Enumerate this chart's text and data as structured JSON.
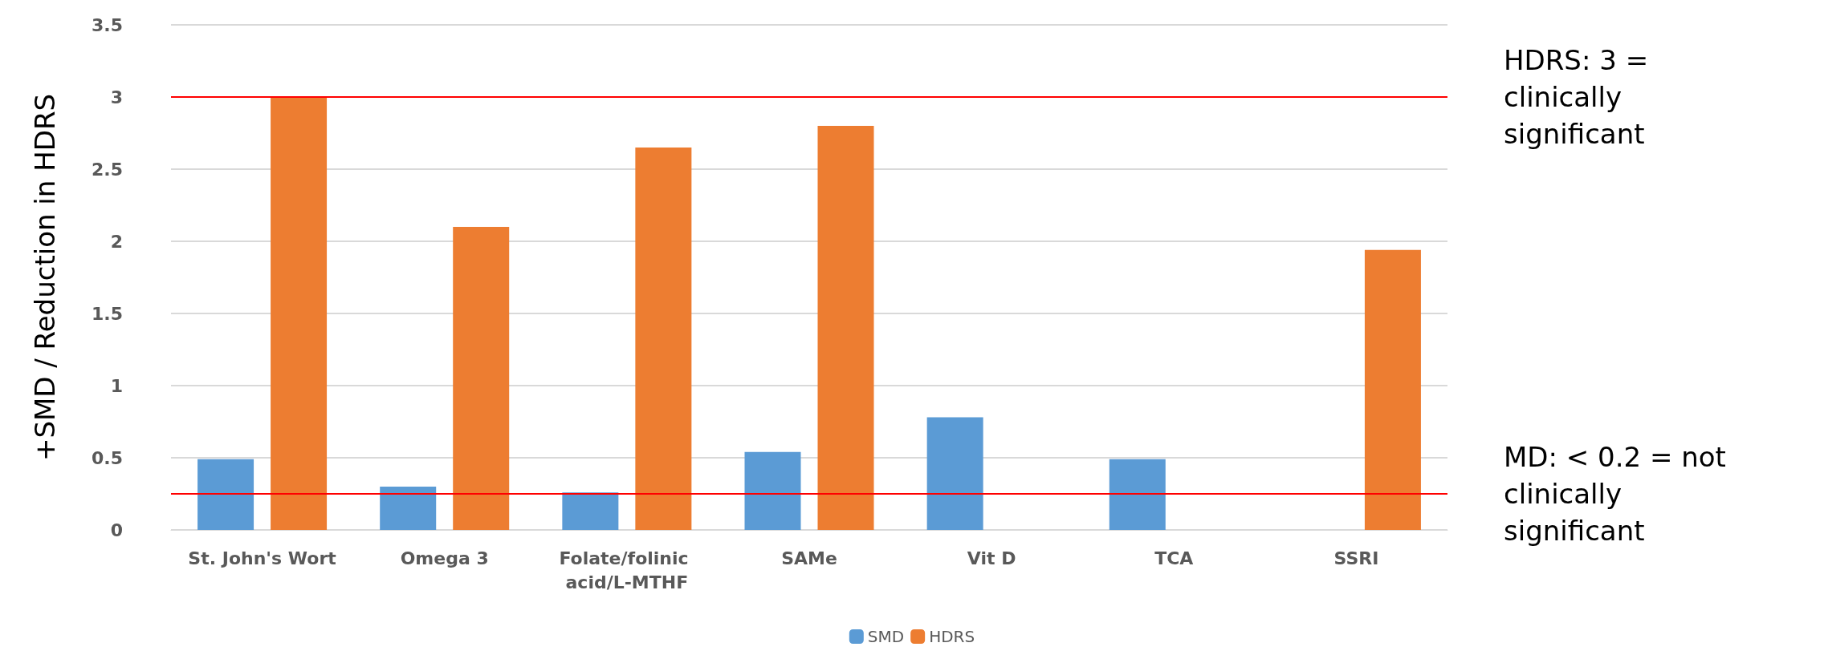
{
  "chart_data": {
    "type": "bar",
    "ylabel": "+SMD / Reduction in HDRS",
    "categories": [
      "St. John's Wort",
      "Omega 3",
      "Folate/folinic acid/L-MTHF",
      "SAMe",
      "Vit D",
      "TCA",
      "SSRI"
    ],
    "series": [
      {
        "name": "SMD",
        "color": "#5b9bd5",
        "values": [
          0.49,
          0.3,
          0.26,
          0.54,
          0.78,
          0.49,
          null
        ]
      },
      {
        "name": "HDRS",
        "color": "#ed7d31",
        "values": [
          3.0,
          2.1,
          2.65,
          2.8,
          null,
          null,
          1.94
        ]
      }
    ],
    "ylim": [
      0,
      3.5
    ],
    "yticks": [
      0,
      0.5,
      1,
      1.5,
      2,
      2.5,
      3,
      3.5
    ],
    "grid": "y",
    "legend": "bottom",
    "ref_lines": [
      {
        "axis": "y",
        "value": 3,
        "label": "HDRS: 3 = clinically significant",
        "color": "#ff0000"
      },
      {
        "axis": "y",
        "value": 0.25,
        "label": "MD: < 0.2 = not clinically significant",
        "color": "#ff0000"
      }
    ]
  }
}
